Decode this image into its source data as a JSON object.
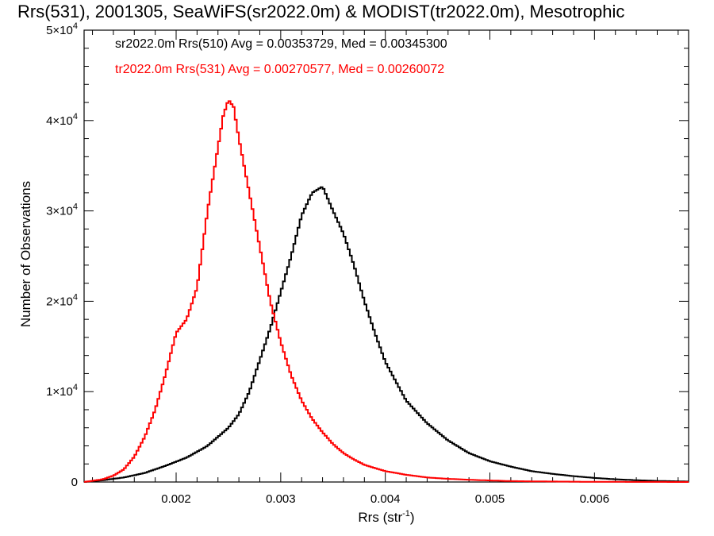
{
  "chart_data": {
    "type": "line",
    "title": "Rrs(531), 2001305, SeaWiFS(sr2022.0m) & MODIST(tr2022.0m), Mesotrophic",
    "xlabel": "Rrs (str",
    "xlabel_sup": "-1",
    "xlabel_end": ")",
    "ylabel": "Number of Observations",
    "xlim": [
      0.00112,
      0.0069
    ],
    "ylim": [
      0,
      50000
    ],
    "xticks": [
      {
        "value": 0.002,
        "label": "0.002"
      },
      {
        "value": 0.003,
        "label": "0.003"
      },
      {
        "value": 0.004,
        "label": "0.004"
      },
      {
        "value": 0.005,
        "label": "0.005"
      },
      {
        "value": 0.006,
        "label": "0.006"
      }
    ],
    "yticks": [
      {
        "value": 0,
        "base": "0",
        "exp": ""
      },
      {
        "value": 10000,
        "base": "1×10",
        "exp": "4"
      },
      {
        "value": 20000,
        "base": "2×10",
        "exp": "4"
      },
      {
        "value": 30000,
        "base": "3×10",
        "exp": "4"
      },
      {
        "value": 40000,
        "base": "4×10",
        "exp": "4"
      },
      {
        "value": 50000,
        "base": "5×10",
        "exp": "4"
      }
    ],
    "grid": false,
    "legend_position": "top-left",
    "series": [
      {
        "name": "sr2022.0m Rrs(510) Avg = 0.00353729, Med = 0.00345300",
        "color": "#000000",
        "x": [
          0.00112,
          0.0013,
          0.0015,
          0.0017,
          0.0019,
          0.0021,
          0.0023,
          0.0025,
          0.0026,
          0.0027,
          0.0028,
          0.0029,
          0.003,
          0.0031,
          0.0032,
          0.0033,
          0.0034,
          0.0035,
          0.0036,
          0.0037,
          0.0038,
          0.0039,
          0.004,
          0.0042,
          0.0044,
          0.0046,
          0.0048,
          0.005,
          0.0052,
          0.0054,
          0.0056,
          0.0058,
          0.006,
          0.0062,
          0.0064,
          0.0066,
          0.0069
        ],
        "y": [
          0,
          200,
          500,
          1000,
          1800,
          2700,
          4000,
          6000,
          7500,
          10000,
          13500,
          17000,
          21000,
          25000,
          29500,
          32000,
          32700,
          30000,
          27500,
          24000,
          20000,
          16500,
          13300,
          9000,
          6500,
          4600,
          3200,
          2300,
          1700,
          1200,
          900,
          650,
          450,
          300,
          200,
          120,
          50
        ]
      },
      {
        "name": "tr2022.0m Rrs(531) Avg = 0.00270577, Med = 0.00260072",
        "color": "#ff0000",
        "x": [
          0.00112,
          0.0013,
          0.0014,
          0.0015,
          0.0016,
          0.0017,
          0.0018,
          0.0019,
          0.002,
          0.0021,
          0.0022,
          0.0023,
          0.0024,
          0.00245,
          0.0025,
          0.00255,
          0.0026,
          0.0027,
          0.0028,
          0.0029,
          0.003,
          0.0031,
          0.0032,
          0.0033,
          0.0034,
          0.0035,
          0.0036,
          0.0037,
          0.0038,
          0.004,
          0.0042,
          0.0044,
          0.0046,
          0.0048,
          0.005,
          0.0052,
          0.0055,
          0.006,
          0.0069
        ],
        "y": [
          0,
          300,
          700,
          1400,
          2800,
          5000,
          8000,
          12000,
          16500,
          18000,
          21500,
          30000,
          37000,
          40500,
          42300,
          41500,
          38000,
          32000,
          26000,
          20000,
          15500,
          11800,
          9000,
          7000,
          5500,
          4200,
          3200,
          2500,
          1900,
          1200,
          800,
          500,
          350,
          250,
          170,
          100,
          60,
          20,
          0
        ]
      }
    ]
  }
}
